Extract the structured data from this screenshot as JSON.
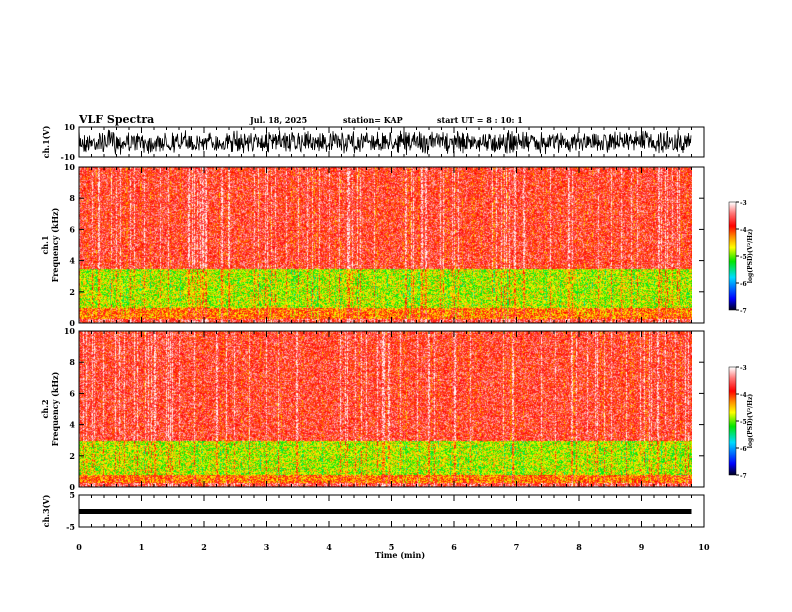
{
  "header": {
    "title": "VLF Spectra",
    "date": "Jul. 18, 2025",
    "station": "station= KAP",
    "start": "start UT =  8 : 10: 1"
  },
  "chart_data": [
    {
      "type": "line",
      "name": "ch1-waveform",
      "ylabel": "ch.1(V)",
      "ylim": [
        -10,
        10
      ],
      "yticks": [
        "10",
        "-10"
      ],
      "xlim": [
        0,
        10
      ],
      "data_end_min": 9.8,
      "description_values": "dense noisy waveform spanning roughly -8 to 8 V"
    },
    {
      "type": "heatmap",
      "name": "ch1-spectrogram",
      "ylabel": "ch.1\nFrequency (kHz)",
      "ylabel_line1": "ch.1",
      "ylabel_line2": "Frequency (kHz)",
      "ylim": [
        0,
        10
      ],
      "yticks": [
        "0",
        "2",
        "4",
        "6",
        "8",
        "10"
      ],
      "xlim": [
        0,
        10
      ],
      "data_end_min": 9.8,
      "colorbar": {
        "label": "log(PSD)(V²/Hz)",
        "range": [
          -7,
          -3
        ],
        "ticks": [
          "-3",
          "-4",
          "-5",
          "-6",
          "-7"
        ]
      },
      "green_band_khz": [
        1,
        3.5
      ]
    },
    {
      "type": "heatmap",
      "name": "ch2-spectrogram",
      "ylabel_line1": "ch.2",
      "ylabel_line2": "Frequency (kHz)",
      "ylim": [
        0,
        10
      ],
      "yticks": [
        "0",
        "2",
        "4",
        "6",
        "8",
        "10"
      ],
      "xlim": [
        0,
        10
      ],
      "data_end_min": 9.8,
      "colorbar": {
        "label": "log(PSD)(V²/Hz)",
        "range": [
          -7,
          -3
        ],
        "ticks": [
          "-3",
          "-4",
          "-5",
          "-6",
          "-7"
        ]
      },
      "green_band_khz": [
        0.8,
        3
      ]
    },
    {
      "type": "line",
      "name": "ch3-waveform",
      "ylabel": "ch.3(V)",
      "ylim": [
        -5,
        5
      ],
      "yticks": [
        "5",
        "-5"
      ],
      "xlim": [
        0,
        10
      ],
      "constant_value": 0,
      "data_end_min": 9.8
    }
  ],
  "xaxis": {
    "label": "Time (min)",
    "ticks": [
      "0",
      "1",
      "2",
      "3",
      "4",
      "5",
      "6",
      "7",
      "8",
      "9",
      "10"
    ]
  },
  "colors": {
    "axis": "#000000"
  }
}
